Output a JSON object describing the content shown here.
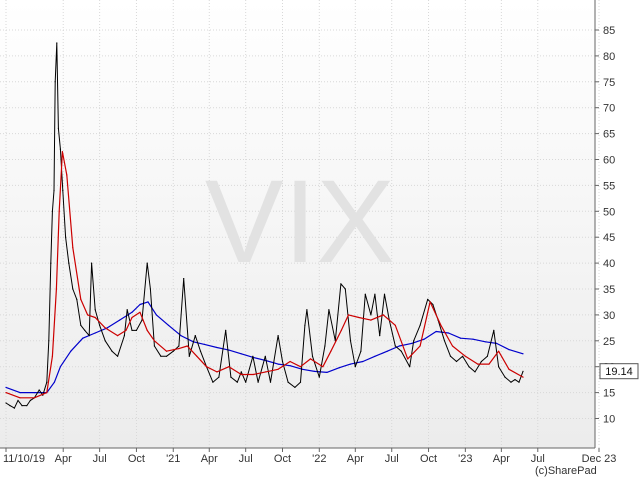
{
  "chart_data": {
    "type": "line",
    "title": "",
    "watermark": "VIX",
    "copyright": "(c)SharePad",
    "xlabel": "",
    "ylabel": "",
    "ylim": [
      5,
      90
    ],
    "y_axis_side": "right",
    "y_ticks": [
      "10",
      "15",
      "20",
      "25",
      "30",
      "35",
      "40",
      "45",
      "50",
      "55",
      "60",
      "65",
      "70",
      "75",
      "80",
      "85"
    ],
    "x_axis": {
      "start": "2019-11-10",
      "end": "2023-12-31"
    },
    "x_ticks": [
      {
        "label": "11/10/19",
        "date": "2019-11-10"
      },
      {
        "label": "Apr",
        "date": "2020-04-01"
      },
      {
        "label": "Jul",
        "date": "2020-07-01"
      },
      {
        "label": "Oct",
        "date": "2020-10-01"
      },
      {
        "label": "'21",
        "date": "2021-01-01"
      },
      {
        "label": "Apr",
        "date": "2021-04-01"
      },
      {
        "label": "Jul",
        "date": "2021-07-01"
      },
      {
        "label": "Oct",
        "date": "2021-10-01"
      },
      {
        "label": "'22",
        "date": "2022-01-01"
      },
      {
        "label": "Apr",
        "date": "2022-04-01"
      },
      {
        "label": "Jul",
        "date": "2022-07-01"
      },
      {
        "label": "Oct",
        "date": "2022-10-01"
      },
      {
        "label": "'23",
        "date": "2023-01-01"
      },
      {
        "label": "Apr",
        "date": "2023-04-01"
      },
      {
        "label": "Jul",
        "date": "2023-07-01"
      },
      {
        "label": "Dec 23",
        "date": "2023-12-01"
      }
    ],
    "grid": true,
    "last_value_label": "19.14",
    "colors": {
      "price": "#000000",
      "ma_short": "#cc0000",
      "ma_long": "#0000cc",
      "grid": "#d8d8d8",
      "bg_top": "#ffffff",
      "bg_bottom": "#ececec"
    },
    "series": [
      {
        "key": "price",
        "x": [
          "2019-11-10",
          "2019-11-20",
          "2019-12-01",
          "2019-12-10",
          "2019-12-20",
          "2020-01-01",
          "2020-01-10",
          "2020-01-20",
          "2020-02-01",
          "2020-02-10",
          "2020-02-20",
          "2020-02-25",
          "2020-03-01",
          "2020-03-05",
          "2020-03-09",
          "2020-03-12",
          "2020-03-16",
          "2020-03-20",
          "2020-03-25",
          "2020-03-31",
          "2020-04-07",
          "2020-04-15",
          "2020-04-25",
          "2020-05-05",
          "2020-05-15",
          "2020-05-25",
          "2020-06-05",
          "2020-06-11",
          "2020-06-20",
          "2020-07-01",
          "2020-07-15",
          "2020-08-01",
          "2020-08-15",
          "2020-09-01",
          "2020-09-08",
          "2020-09-20",
          "2020-10-01",
          "2020-10-15",
          "2020-10-28",
          "2020-11-05",
          "2020-11-15",
          "2020-12-01",
          "2020-12-15",
          "2021-01-01",
          "2021-01-15",
          "2021-01-27",
          "2021-02-10",
          "2021-02-25",
          "2021-03-10",
          "2021-03-25",
          "2021-04-10",
          "2021-04-25",
          "2021-05-12",
          "2021-05-25",
          "2021-06-10",
          "2021-06-20",
          "2021-07-01",
          "2021-07-19",
          "2021-08-01",
          "2021-08-19",
          "2021-09-01",
          "2021-09-20",
          "2021-10-01",
          "2021-10-15",
          "2021-11-01",
          "2021-11-15",
          "2021-11-26",
          "2021-12-01",
          "2021-12-15",
          "2022-01-01",
          "2022-01-15",
          "2022-01-25",
          "2022-02-10",
          "2022-02-24",
          "2022-03-07",
          "2022-03-20",
          "2022-04-01",
          "2022-04-15",
          "2022-04-26",
          "2022-05-10",
          "2022-05-20",
          "2022-06-01",
          "2022-06-13",
          "2022-06-25",
          "2022-07-10",
          "2022-07-25",
          "2022-08-15",
          "2022-08-25",
          "2022-09-10",
          "2022-09-29",
          "2022-10-12",
          "2022-10-25",
          "2022-11-10",
          "2022-11-25",
          "2022-12-10",
          "2022-12-25",
          "2023-01-10",
          "2023-01-25",
          "2023-02-10",
          "2023-02-25",
          "2023-03-13",
          "2023-03-25",
          "2023-04-10",
          "2023-04-25",
          "2023-05-05",
          "2023-05-15",
          "2023-05-25"
        ],
        "y": [
          13.0,
          12.5,
          12.0,
          13.5,
          12.5,
          12.5,
          13.5,
          14.0,
          15.5,
          14.5,
          17.0,
          25.0,
          40.0,
          50.0,
          54.0,
          75.0,
          82.5,
          66.0,
          62.0,
          54.0,
          45.0,
          40.0,
          35.0,
          33.0,
          28.0,
          27.0,
          26.0,
          40.0,
          31.0,
          28.0,
          25.0,
          23.0,
          22.0,
          26.0,
          31.0,
          27.0,
          27.0,
          29.0,
          40.0,
          35.0,
          24.0,
          22.0,
          22.0,
          23.0,
          24.0,
          37.0,
          22.0,
          26.0,
          23.0,
          20.0,
          17.0,
          18.0,
          27.0,
          18.0,
          17.0,
          19.0,
          17.0,
          22.0,
          17.0,
          22.0,
          17.0,
          26.0,
          21.0,
          17.0,
          16.0,
          17.0,
          28.0,
          31.0,
          22.0,
          18.0,
          24.0,
          31.0,
          25.0,
          36.0,
          35.0,
          25.0,
          20.0,
          23.0,
          34.0,
          30.0,
          34.0,
          26.0,
          34.0,
          29.0,
          24.0,
          23.0,
          20.0,
          25.0,
          28.0,
          33.0,
          32.0,
          29.0,
          25.0,
          22.0,
          21.0,
          22.0,
          20.0,
          19.0,
          21.0,
          22.0,
          27.0,
          20.0,
          18.0,
          17.0,
          17.5,
          17.0,
          19.1
        ]
      },
      {
        "key": "ma_short",
        "x": [
          "2019-11-10",
          "2019-12-15",
          "2020-01-20",
          "2020-02-20",
          "2020-03-05",
          "2020-03-15",
          "2020-03-22",
          "2020-03-30",
          "2020-04-10",
          "2020-04-25",
          "2020-05-15",
          "2020-06-01",
          "2020-06-20",
          "2020-07-15",
          "2020-08-15",
          "2020-09-05",
          "2020-09-20",
          "2020-10-10",
          "2020-10-28",
          "2020-11-15",
          "2020-12-15",
          "2021-01-15",
          "2021-02-05",
          "2021-03-01",
          "2021-03-25",
          "2021-04-20",
          "2021-05-20",
          "2021-06-20",
          "2021-07-20",
          "2021-08-20",
          "2021-09-20",
          "2021-10-20",
          "2021-11-15",
          "2021-12-10",
          "2022-01-10",
          "2022-01-30",
          "2022-02-25",
          "2022-03-15",
          "2022-04-10",
          "2022-05-10",
          "2022-06-10",
          "2022-07-10",
          "2022-08-10",
          "2022-09-10",
          "2022-10-05",
          "2022-11-01",
          "2022-11-30",
          "2023-01-01",
          "2023-02-01",
          "2023-03-01",
          "2023-03-25",
          "2023-04-20",
          "2023-05-25"
        ],
        "y": [
          15.0,
          14.0,
          14.0,
          15.0,
          22.0,
          35.0,
          50.0,
          61.5,
          57.0,
          43.0,
          33.0,
          30.0,
          29.5,
          27.5,
          26.0,
          27.0,
          29.5,
          30.5,
          27.0,
          25.0,
          23.0,
          23.5,
          24.0,
          22.0,
          20.0,
          19.0,
          20.0,
          18.5,
          18.5,
          19.0,
          19.5,
          21.0,
          20.0,
          21.5,
          20.0,
          23.0,
          27.0,
          30.0,
          29.5,
          29.0,
          30.0,
          28.0,
          21.5,
          24.0,
          32.5,
          28.0,
          24.0,
          22.0,
          20.5,
          20.5,
          23.0,
          19.5,
          18.0
        ]
      },
      {
        "key": "ma_long",
        "x": [
          "2019-11-10",
          "2019-12-15",
          "2020-01-20",
          "2020-02-20",
          "2020-03-10",
          "2020-03-25",
          "2020-04-20",
          "2020-05-20",
          "2020-06-20",
          "2020-07-20",
          "2020-08-20",
          "2020-09-20",
          "2020-10-10",
          "2020-10-30",
          "2020-11-20",
          "2020-12-20",
          "2021-01-20",
          "2021-02-20",
          "2021-03-20",
          "2021-04-20",
          "2021-05-20",
          "2021-06-20",
          "2021-07-20",
          "2021-08-20",
          "2021-09-20",
          "2021-10-20",
          "2021-11-20",
          "2021-12-20",
          "2022-01-20",
          "2022-02-20",
          "2022-03-20",
          "2022-04-20",
          "2022-05-20",
          "2022-06-20",
          "2022-07-20",
          "2022-08-20",
          "2022-09-20",
          "2022-10-20",
          "2022-11-20",
          "2022-12-20",
          "2023-01-20",
          "2023-02-20",
          "2023-03-20",
          "2023-04-20",
          "2023-05-25"
        ],
        "y": [
          16.0,
          15.0,
          15.0,
          15.0,
          17.0,
          20.0,
          23.0,
          25.5,
          26.5,
          27.5,
          29.0,
          30.5,
          32.0,
          32.5,
          30.0,
          28.0,
          26.0,
          24.8,
          24.3,
          23.7,
          23.2,
          22.5,
          21.8,
          21.2,
          20.5,
          20.2,
          19.5,
          19.1,
          18.9,
          19.8,
          20.5,
          21.0,
          22.0,
          23.0,
          24.0,
          24.5,
          25.3,
          26.8,
          26.5,
          25.5,
          25.3,
          24.8,
          24.5,
          23.3,
          22.5
        ]
      }
    ]
  }
}
